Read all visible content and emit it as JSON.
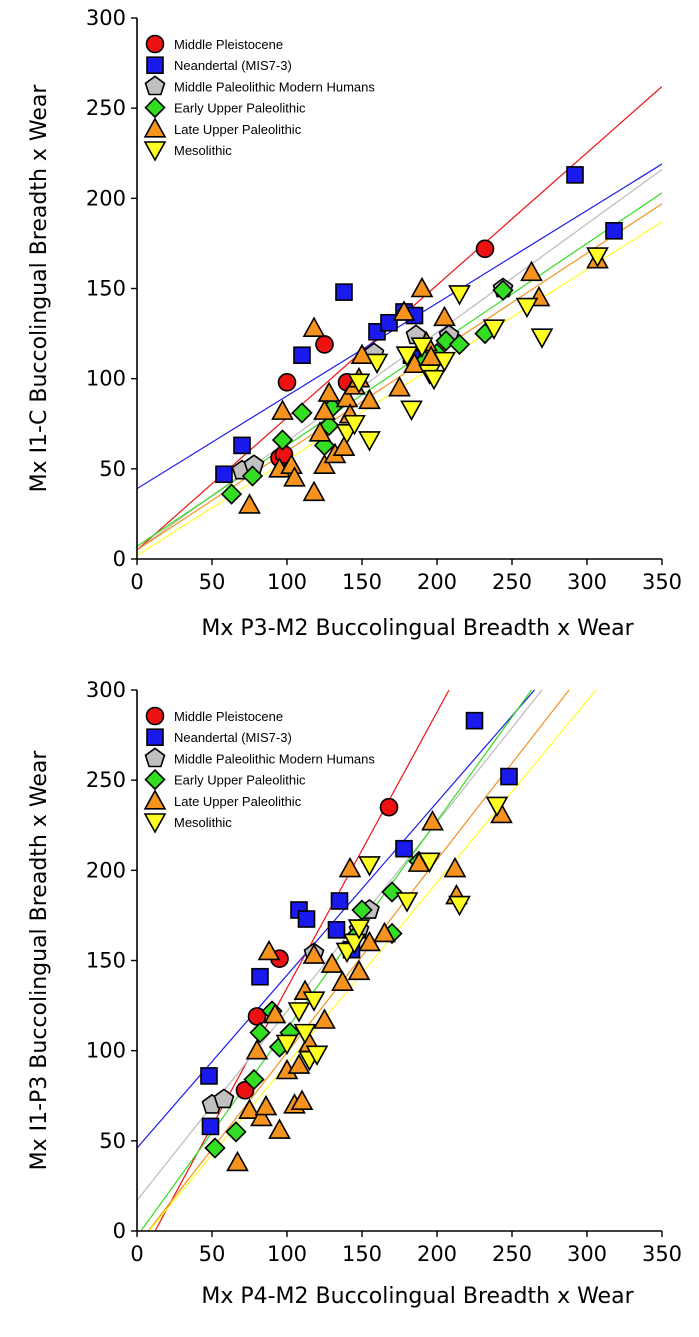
{
  "chart_data": [
    {
      "type": "scatter",
      "xlabel": "Mx P3-M2 Buccolingual Breadth x Wear",
      "ylabel": "Mx I1-C Buccolingual Breadth x Wear",
      "xlim": [
        0,
        350
      ],
      "ylim": [
        0,
        300
      ],
      "xticks": [
        "0",
        "50",
        "100",
        "150",
        "200",
        "250",
        "300",
        "350"
      ],
      "yticks": [
        "0",
        "50",
        "100",
        "150",
        "200",
        "250",
        "300"
      ],
      "legend_position": "top-left",
      "series": [
        {
          "name": "Middle Pleistocene",
          "marker": "circle",
          "color": "#ee1111",
          "points": [
            [
              100,
              98
            ],
            [
              95,
              56
            ],
            [
              98,
              58
            ],
            [
              125,
              119
            ],
            [
              232,
              172
            ],
            [
              140,
              98
            ]
          ],
          "fit": [
            [
              0,
              5
            ],
            [
              350,
              262
            ]
          ]
        },
        {
          "name": "Neandertal (MIS7-3)",
          "marker": "square",
          "color": "#1a1aee",
          "points": [
            [
              58,
              47
            ],
            [
              70,
              63
            ],
            [
              110,
              113
            ],
            [
              138,
              148
            ],
            [
              160,
              126
            ],
            [
              168,
              131
            ],
            [
              178,
              137
            ],
            [
              183,
              113
            ],
            [
              185,
              135
            ],
            [
              292,
              213
            ],
            [
              318,
              182
            ]
          ],
          "fit": [
            [
              0,
              39
            ],
            [
              350,
              219
            ]
          ]
        },
        {
          "name": "Middle Paleolithic Modern Humans",
          "marker": "pentagon",
          "color": "#c0c0c0",
          "points": [
            [
              70,
              49
            ],
            [
              78,
              52
            ],
            [
              158,
              114
            ],
            [
              186,
              124
            ],
            [
              208,
              124
            ],
            [
              244,
              150
            ]
          ],
          "fit": [
            [
              0,
              5
            ],
            [
              350,
              216
            ]
          ]
        },
        {
          "name": "Early Upper Paleolithic",
          "marker": "diamond",
          "color": "#33dd22",
          "points": [
            [
              63,
              36
            ],
            [
              77,
              46
            ],
            [
              97,
              66
            ],
            [
              110,
              81
            ],
            [
              125,
              63
            ],
            [
              128,
              74
            ],
            [
              130,
              84
            ],
            [
              192,
              110
            ],
            [
              200,
              114
            ],
            [
              206,
              121
            ],
            [
              215,
              119
            ],
            [
              232,
              125
            ],
            [
              244,
              149
            ]
          ],
          "fit": [
            [
              0,
              7
            ],
            [
              350,
              203
            ]
          ]
        },
        {
          "name": "Late Upper Paleolithic",
          "marker": "triangle-up",
          "color": "#f5931e",
          "points": [
            [
              75,
              30
            ],
            [
              95,
              50
            ],
            [
              97,
              82
            ],
            [
              103,
              52
            ],
            [
              105,
              45
            ],
            [
              118,
              37
            ],
            [
              118,
              128
            ],
            [
              122,
              70
            ],
            [
              125,
              52
            ],
            [
              125,
              82
            ],
            [
              128,
              92
            ],
            [
              132,
              58
            ],
            [
              138,
              62
            ],
            [
              140,
              89
            ],
            [
              142,
              80
            ],
            [
              145,
              96
            ],
            [
              148,
              100
            ],
            [
              150,
              113
            ],
            [
              155,
              88
            ],
            [
              175,
              95
            ],
            [
              178,
              137
            ],
            [
              185,
              108
            ],
            [
              190,
              150
            ],
            [
              193,
              120
            ],
            [
              196,
              112
            ],
            [
              205,
              134
            ],
            [
              263,
              159
            ],
            [
              268,
              145
            ],
            [
              307,
              166
            ]
          ],
          "fit": [
            [
              0,
              5
            ],
            [
              350,
              197
            ]
          ]
        },
        {
          "name": "Mesolithic",
          "marker": "triangle-down",
          "color": "#ffff22",
          "points": [
            [
              140,
              70
            ],
            [
              145,
              75
            ],
            [
              148,
              98
            ],
            [
              155,
              66
            ],
            [
              160,
              109
            ],
            [
              180,
              113
            ],
            [
              183,
              83
            ],
            [
              190,
              118
            ],
            [
              195,
              103
            ],
            [
              198,
              100
            ],
            [
              205,
              110
            ],
            [
              215,
              147
            ],
            [
              238,
              128
            ],
            [
              260,
              140
            ],
            [
              270,
              123
            ],
            [
              307,
              168
            ]
          ],
          "fit": [
            [
              0,
              2
            ],
            [
              350,
              187
            ]
          ]
        }
      ]
    },
    {
      "type": "scatter",
      "xlabel": "Mx P4-M2 Buccolingual Breadth x Wear",
      "ylabel": "Mx I1-P3 Buccolingual Breadth x Wear",
      "xlim": [
        0,
        350
      ],
      "ylim": [
        0,
        300
      ],
      "xticks": [
        "0",
        "50",
        "100",
        "150",
        "200",
        "250",
        "300",
        "350"
      ],
      "yticks": [
        "0",
        "50",
        "100",
        "150",
        "200",
        "250",
        "300"
      ],
      "legend_position": "top-left",
      "series": [
        {
          "name": "Middle Pleistocene",
          "marker": "circle",
          "color": "#ee1111",
          "points": [
            [
              72,
              78
            ],
            [
              80,
              119
            ],
            [
              95,
              151
            ],
            [
              168,
              235
            ]
          ],
          "fit": [
            [
              12,
              0
            ],
            [
              208,
              300
            ]
          ]
        },
        {
          "name": "Neandertal (MIS7-3)",
          "marker": "square",
          "color": "#1a1aee",
          "points": [
            [
              48,
              86
            ],
            [
              49,
              58
            ],
            [
              82,
              141
            ],
            [
              108,
              178
            ],
            [
              113,
              173
            ],
            [
              133,
              167
            ],
            [
              135,
              183
            ],
            [
              143,
              156
            ],
            [
              178,
              212
            ],
            [
              225,
              283
            ],
            [
              248,
              252
            ]
          ],
          "fit": [
            [
              0,
              46
            ],
            [
              265,
              300
            ]
          ]
        },
        {
          "name": "Middle Paleolithic Modern Humans",
          "marker": "pentagon",
          "color": "#c0c0c0",
          "points": [
            [
              50,
              70
            ],
            [
              58,
              73
            ],
            [
              118,
              154
            ],
            [
              148,
              167
            ],
            [
              155,
              178
            ]
          ],
          "fit": [
            [
              0,
              17
            ],
            [
              270,
              300
            ]
          ]
        },
        {
          "name": "Early Upper Paleolithic",
          "marker": "diamond",
          "color": "#33dd22",
          "points": [
            [
              52,
              46
            ],
            [
              66,
              55
            ],
            [
              78,
              84
            ],
            [
              82,
              110
            ],
            [
              90,
              122
            ],
            [
              95,
              102
            ],
            [
              102,
              110
            ],
            [
              145,
              163
            ],
            [
              150,
              178
            ],
            [
              170,
              165
            ],
            [
              170,
              188
            ],
            [
              188,
              205
            ]
          ],
          "fit": [
            [
              0,
              -3
            ],
            [
              263,
              300
            ]
          ]
        },
        {
          "name": "Late Upper Paleolithic",
          "marker": "triangle-up",
          "color": "#f5931e",
          "points": [
            [
              67,
              38
            ],
            [
              75,
              67
            ],
            [
              80,
              100
            ],
            [
              83,
              63
            ],
            [
              86,
              69
            ],
            [
              88,
              155
            ],
            [
              92,
              120
            ],
            [
              95,
              56
            ],
            [
              100,
              89
            ],
            [
              105,
              70
            ],
            [
              108,
              92
            ],
            [
              110,
              72
            ],
            [
              112,
              133
            ],
            [
              115,
              104
            ],
            [
              118,
              153
            ],
            [
              125,
              117
            ],
            [
              130,
              148
            ],
            [
              137,
              138
            ],
            [
              142,
              201
            ],
            [
              148,
              144
            ],
            [
              155,
              160
            ],
            [
              165,
              165
            ],
            [
              188,
              204
            ],
            [
              197,
              227
            ],
            [
              212,
              201
            ],
            [
              213,
              186
            ],
            [
              243,
              231
            ]
          ],
          "fit": [
            [
              0,
              -8
            ],
            [
              288,
              300
            ]
          ]
        },
        {
          "name": "Mesolithic",
          "marker": "triangle-down",
          "color": "#ffff22",
          "points": [
            [
              100,
              104
            ],
            [
              108,
              122
            ],
            [
              112,
              110
            ],
            [
              115,
              95
            ],
            [
              118,
              128
            ],
            [
              120,
              98
            ],
            [
              140,
              155
            ],
            [
              145,
              160
            ],
            [
              148,
              168
            ],
            [
              155,
              203
            ],
            [
              180,
              183
            ],
            [
              195,
              205
            ],
            [
              215,
              181
            ],
            [
              240,
              236
            ]
          ],
          "fit": [
            [
              0,
              -8
            ],
            [
              306,
              300
            ]
          ]
        }
      ]
    }
  ]
}
